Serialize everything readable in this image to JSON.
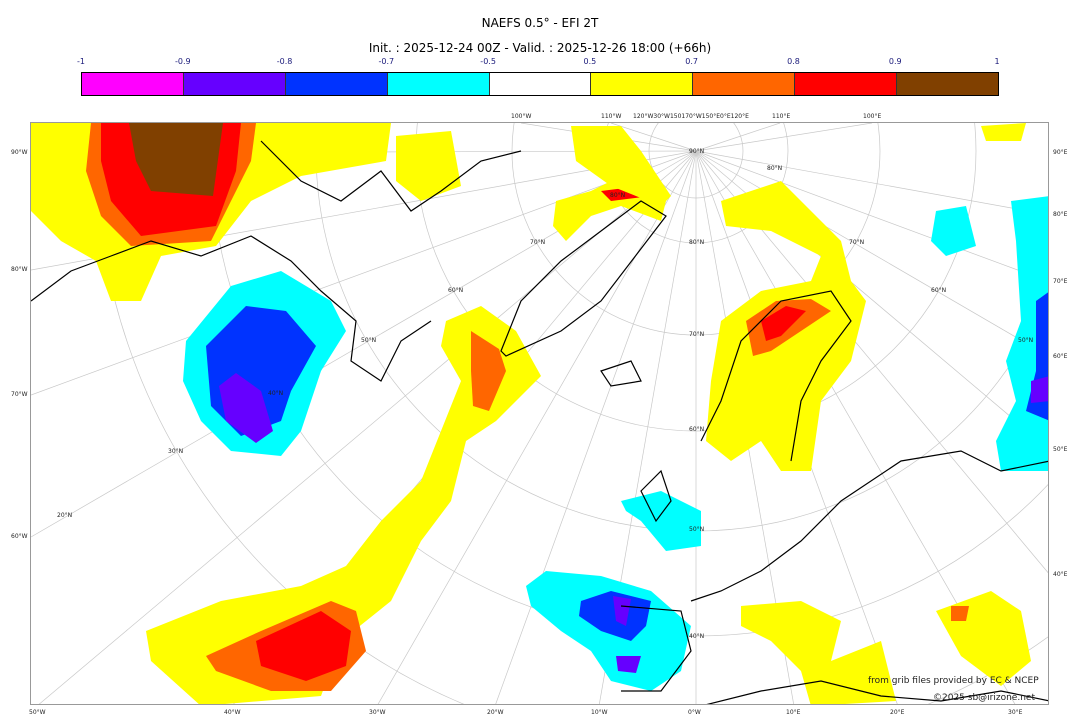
{
  "header": {
    "title": "NAEFS 0.5° - EFI 2T",
    "subtitle": "Init. : 2025-12-24 00Z - Valid. : 2025-12-26 18:00 (+66h)"
  },
  "colorbar": {
    "ticks": [
      "-1",
      "-0.9",
      "-0.8",
      "-0.7",
      "-0.5",
      "0.5",
      "0.7",
      "0.8",
      "0.9",
      "1"
    ],
    "colors": [
      "#ff00ff",
      "#6600ff",
      "#0033ff",
      "#00ffff",
      "#ffffff",
      "#ffff00",
      "#ff6600",
      "#ff0000",
      "#804000"
    ]
  },
  "axes": {
    "left": [
      "90°W",
      "80°W",
      "70°W",
      "60°W"
    ],
    "bottom": [
      "50°W",
      "40°W",
      "30°W",
      "20°W",
      "10°W",
      "0°W",
      "10°E",
      "20°E",
      "30°E"
    ],
    "right": [
      "90°E",
      "80°E",
      "70°E",
      "60°E",
      "50°E",
      "40°E"
    ],
    "top": [
      "100°W",
      "110°W",
      "120°W30°W150170°W150°E0°E120°E",
      "110°E",
      "100°E"
    ],
    "lat_labels": [
      "90°N",
      "80°N",
      "70°N",
      "60°N",
      "50°N",
      "40°N",
      "30°N",
      "20°N",
      "80°N",
      "70°N",
      "60°N",
      "50°N",
      "40°N",
      "80°N",
      "70°N",
      "60°N",
      "50°N"
    ]
  },
  "credits": {
    "source": "from grib files provided by EC & NCEP",
    "copyright": "©2025 sb@irizone.net"
  }
}
